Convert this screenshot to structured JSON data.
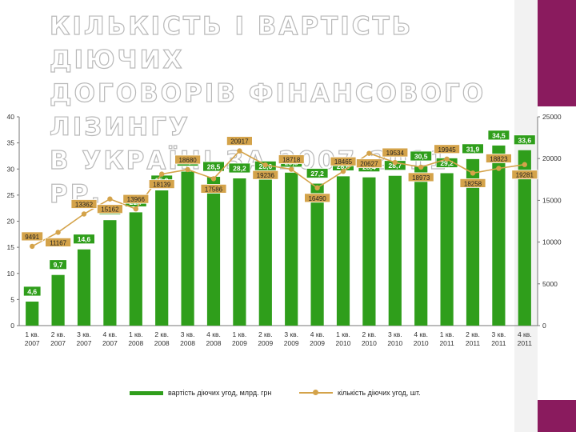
{
  "slide": {
    "title_lines": [
      "КІЛЬКІСТЬ І ВАРТІСТЬ ДІЮЧИХ",
      "ДОГОВОРІВ ФІНАНСОВОГО ЛІЗИНГУ",
      "В УКРАЇНІ ЗА 2007-2011 РР."
    ],
    "colors": {
      "accent": "#8a1b5e",
      "bar": "#2f9e1b",
      "line": "#d4a34a"
    }
  },
  "chart_data": {
    "type": "bar",
    "categories": [
      [
        "1 кв.",
        "2007"
      ],
      [
        "2 кв.",
        "2007"
      ],
      [
        "3 кв.",
        "2007"
      ],
      [
        "4 кв.",
        "2007"
      ],
      [
        "1 кв.",
        "2008"
      ],
      [
        "2 кв.",
        "2008"
      ],
      [
        "3 кв.",
        "2008"
      ],
      [
        "4 кв.",
        "2008"
      ],
      [
        "1 кв.",
        "2009"
      ],
      [
        "2 кв.",
        "2009"
      ],
      [
        "3 кв.",
        "2009"
      ],
      [
        "4 кв.",
        "2009"
      ],
      [
        "1 кв.",
        "2010"
      ],
      [
        "2 кв.",
        "2010"
      ],
      [
        "3 кв.",
        "2010"
      ],
      [
        "4 кв.",
        "2010"
      ],
      [
        "1 кв.",
        "2011"
      ],
      [
        "2 кв.",
        "2011"
      ],
      [
        "3 кв.",
        "2011"
      ],
      [
        "4 кв.",
        "2011"
      ]
    ],
    "series": [
      {
        "name": "вартість діючих угод, млрд. грн",
        "type": "bar",
        "axis": "left",
        "values": [
          4.6,
          9.7,
          14.6,
          20.2,
          21.7,
          25.9,
          29.5,
          28.5,
          28.2,
          28.6,
          29.3,
          27.2,
          28.6,
          28.4,
          28.7,
          30.5,
          29.2,
          31.9,
          34.5,
          33.6
        ],
        "labels": [
          "4,6",
          "9,7",
          "14,6",
          "20,2",
          "21,7",
          "25,9",
          "29,5",
          "28,5",
          "28,2",
          "28,6",
          "29,3",
          "27,2",
          "28,6",
          "28,4",
          "28,7",
          "30,5",
          "29,2",
          "31,9",
          "34,5",
          "33,6"
        ]
      },
      {
        "name": "кількість діючих угод, шт.",
        "type": "line",
        "axis": "right",
        "values": [
          9491,
          11167,
          13362,
          15162,
          13966,
          18139,
          18680,
          17586,
          20917,
          19236,
          18718,
          16490,
          18465,
          20627,
          19534,
          18973,
          19945,
          18258,
          18823,
          19281
        ],
        "labels": [
          "9491",
          "11167",
          "13362",
          "15162",
          "13966",
          "18139",
          "18680",
          "17586",
          "20917",
          "19236",
          "18718",
          "16490",
          "18465",
          "20627",
          "19534",
          "18973",
          "19945",
          "18258",
          "18823",
          "19281"
        ]
      }
    ],
    "y_left": {
      "min": 0,
      "max": 40,
      "ticks": [
        0,
        5,
        10,
        15,
        20,
        25,
        30,
        35,
        40
      ]
    },
    "y_right": {
      "min": 0,
      "max": 25000,
      "ticks": [
        0,
        5000,
        10000,
        15000,
        20000,
        25000
      ]
    },
    "grid": false,
    "legend_position": "bottom"
  }
}
